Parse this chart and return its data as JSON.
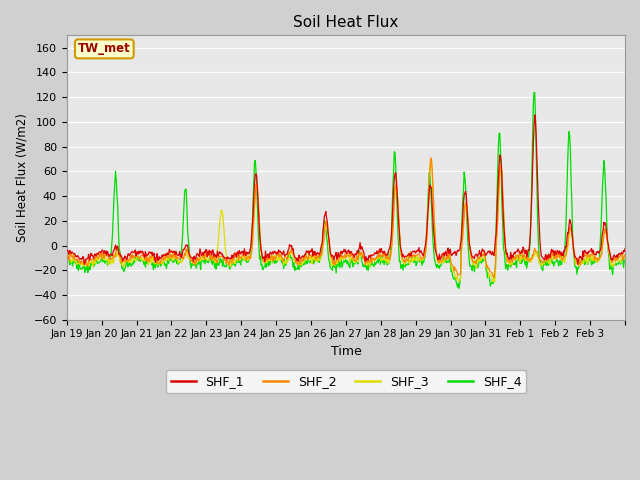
{
  "title": "Soil Heat Flux",
  "xlabel": "Time",
  "ylabel": "Soil Heat Flux (W/m2)",
  "ylim": [
    -60,
    170
  ],
  "yticks": [
    -60,
    -40,
    -20,
    0,
    20,
    40,
    60,
    80,
    100,
    120,
    140,
    160
  ],
  "fig_bg": "#d0d0d0",
  "plot_bg": "#e8e8e8",
  "grid_color": "#ffffff",
  "line_colors": {
    "SHF_1": "#dd0000",
    "SHF_2": "#ff8800",
    "SHF_3": "#dddd00",
    "SHF_4": "#00dd00"
  },
  "annotation_text": "TW_met",
  "annotation_fg": "#990000",
  "annotation_bg": "#ffffcc",
  "annotation_border": "#cc9900",
  "xtick_labels": [
    "Jan 19",
    "Jan 20",
    "Jan 21",
    "Jan 22",
    "Jan 23",
    "Jan 24",
    "Jan 25",
    "Jan 26",
    "Jan 27",
    "Jan 28",
    "Jan 29",
    "Jan 30",
    "Jan 31",
    "Feb 1",
    "Feb 2",
    "Feb 3"
  ],
  "n_days": 16,
  "pts_per_day": 48
}
